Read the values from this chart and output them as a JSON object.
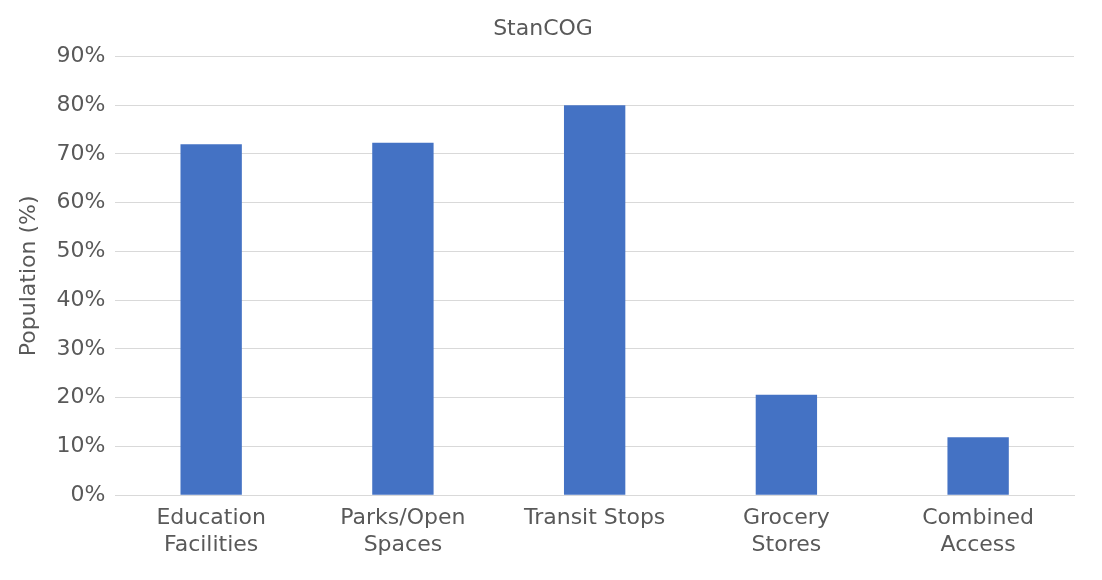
{
  "chart_data": {
    "type": "bar",
    "title": "StanCOG",
    "ylabel": "Population (%)",
    "categories": [
      "Education Facilities",
      "Parks/Open Spaces",
      "Transit Stops",
      "Grocery Stores",
      "Combined Access"
    ],
    "values": [
      72,
      72.3,
      80,
      20.6,
      11.9
    ],
    "color": "#4472c4",
    "ylim": [
      0,
      90
    ],
    "yticks": [
      {
        "value": 0,
        "label": "0%"
      },
      {
        "value": 10,
        "label": "10%"
      },
      {
        "value": 20,
        "label": "20%"
      },
      {
        "value": 30,
        "label": "30%"
      },
      {
        "value": 40,
        "label": "40%"
      },
      {
        "value": 50,
        "label": "50%"
      },
      {
        "value": 60,
        "label": "60%"
      },
      {
        "value": 70,
        "label": "70%"
      },
      {
        "value": 80,
        "label": "80%"
      },
      {
        "value": 90,
        "label": "90%"
      }
    ],
    "grid": "y",
    "legend": false
  }
}
